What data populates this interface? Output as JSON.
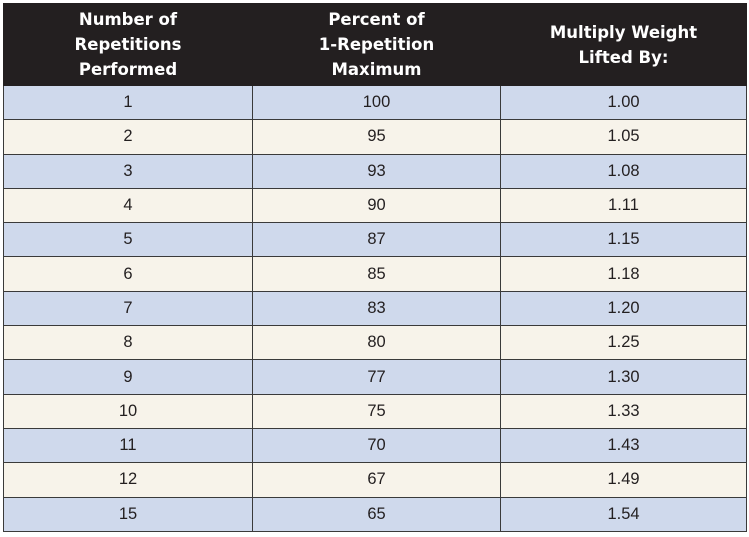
{
  "table": {
    "headers": [
      [
        "Number of",
        "Repetitions",
        "Performed"
      ],
      [
        "Percent of",
        "1-Repetition",
        "Maximum"
      ],
      [
        "Multiply Weight",
        "Lifted By:"
      ]
    ],
    "rows": [
      [
        "1",
        "100",
        "1.00"
      ],
      [
        "2",
        "95",
        "1.05"
      ],
      [
        "3",
        "93",
        "1.08"
      ],
      [
        "4",
        "90",
        "1.11"
      ],
      [
        "5",
        "87",
        "1.15"
      ],
      [
        "6",
        "85",
        "1.18"
      ],
      [
        "7",
        "83",
        "1.20"
      ],
      [
        "8",
        "80",
        "1.25"
      ],
      [
        "9",
        "77",
        "1.30"
      ],
      [
        "10",
        "75",
        "1.33"
      ],
      [
        "11",
        "70",
        "1.43"
      ],
      [
        "12",
        "67",
        "1.49"
      ],
      [
        "15",
        "65",
        "1.54"
      ]
    ],
    "colors": {
      "header_bg": "#231f20",
      "header_text": "#ffffff",
      "row_blue": "#cfd9ec",
      "row_cream": "#f7f3ea",
      "border": "#3a3a3a"
    }
  }
}
